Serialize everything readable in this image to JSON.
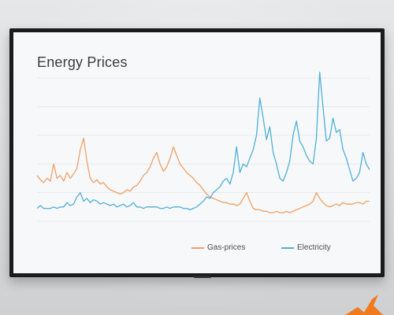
{
  "screen": {
    "title": "Energy Prices"
  },
  "colors": {
    "gas": "#f0a066",
    "electricity": "#4fb0d8",
    "grid": "#e4e6e9",
    "bezel": "#1b1b1b",
    "logo": "#f07a1e"
  },
  "icons": {
    "corner_logo": "orange-arrow-logo-icon"
  },
  "chart_data": {
    "type": "line",
    "title": "Energy Prices",
    "xlabel": "",
    "ylabel": "",
    "ylim": [
      0,
      100
    ],
    "grid": true,
    "legend_position": "bottom",
    "x": [
      0,
      1,
      2,
      3,
      4,
      5,
      6,
      7,
      8,
      9,
      10,
      11,
      12,
      13,
      14,
      15,
      16,
      17,
      18,
      19,
      20,
      21,
      22,
      23,
      24,
      25,
      26,
      27,
      28,
      29,
      30,
      31,
      32,
      33,
      34,
      35,
      36,
      37,
      38,
      39,
      40,
      41,
      42,
      43,
      44,
      45,
      46,
      47,
      48,
      49,
      50,
      51,
      52,
      53,
      54,
      55,
      56,
      57,
      58,
      59,
      60,
      61,
      62,
      63,
      64,
      65,
      66,
      67,
      68,
      69,
      70,
      71,
      72,
      73,
      74,
      75,
      76,
      77,
      78,
      79,
      80,
      81,
      82,
      83,
      84,
      85,
      86,
      87,
      88,
      89,
      90,
      91,
      92,
      93,
      94,
      95,
      96,
      97,
      98,
      99,
      100
    ],
    "series": [
      {
        "name": "Gas-prices",
        "values": [
          32,
          29,
          27,
          30,
          28,
          40,
          30,
          32,
          28,
          34,
          30,
          33,
          37,
          50,
          58,
          42,
          30,
          27,
          29,
          26,
          27,
          24,
          22,
          21,
          20,
          19,
          20,
          22,
          21,
          24,
          25,
          28,
          32,
          34,
          38,
          44,
          48,
          40,
          35,
          38,
          44,
          52,
          46,
          40,
          37,
          34,
          32,
          30,
          27,
          25,
          22,
          19,
          17,
          16,
          15,
          14,
          13,
          13,
          12,
          12,
          11,
          12,
          16,
          20,
          14,
          9,
          8,
          8,
          7,
          7,
          6,
          6,
          7,
          6,
          6,
          7,
          6,
          7,
          8,
          9,
          10,
          11,
          12,
          14,
          20,
          16,
          13,
          11,
          10,
          11,
          12,
          11,
          13,
          12,
          12,
          12,
          13,
          13,
          12,
          14,
          14
        ],
        "color": "#f0a066"
      },
      {
        "name": "Electricity",
        "values": [
          9,
          11,
          9,
          9,
          9,
          10,
          9,
          10,
          10,
          13,
          11,
          12,
          17,
          20,
          14,
          16,
          13,
          15,
          14,
          12,
          13,
          12,
          11,
          12,
          10,
          11,
          12,
          10,
          11,
          13,
          10,
          10,
          9,
          10,
          10,
          10,
          10,
          9,
          9,
          10,
          9,
          10,
          10,
          10,
          9,
          9,
          8,
          9,
          10,
          12,
          14,
          17,
          16,
          20,
          22,
          24,
          28,
          30,
          26,
          34,
          52,
          34,
          40,
          38,
          44,
          50,
          60,
          86,
          72,
          57,
          66,
          48,
          40,
          30,
          28,
          34,
          42,
          60,
          70,
          56,
          52,
          46,
          42,
          40,
          58,
          104,
          80,
          56,
          58,
          72,
          62,
          64,
          50,
          44,
          36,
          28,
          30,
          34,
          48,
          40,
          36
        ],
        "color": "#4fb0d8"
      }
    ]
  }
}
